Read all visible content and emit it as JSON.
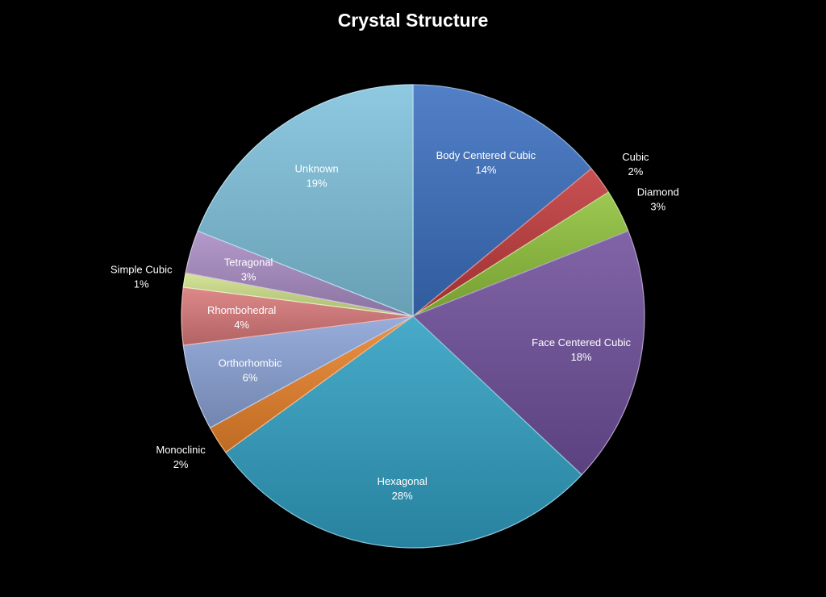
{
  "chart_data": {
    "type": "pie",
    "title": "Crystal Structure",
    "slices": [
      {
        "label": "Body Centered Cubic",
        "value": 14,
        "pct_label": "14%",
        "color": "#3a6fbf",
        "label_color": "#ffffff",
        "label_pos": "inside"
      },
      {
        "label": "Cubic",
        "value": 2,
        "pct_label": "2%",
        "color": "#c0393a",
        "label_color": "#ffffff",
        "label_pos": "outside"
      },
      {
        "label": "Diamond",
        "value": 3,
        "pct_label": "3%",
        "color": "#8fc13a",
        "label_color": "#ffffff",
        "label_pos": "outside"
      },
      {
        "label": "Face Centered Cubic",
        "value": 18,
        "pct_label": "18%",
        "color": "#6f4f9b",
        "label_color": "#ffffff",
        "label_pos": "inside"
      },
      {
        "label": "Hexagonal",
        "value": 28,
        "pct_label": "28%",
        "color": "#2f9fc2",
        "label_color": "#ffffff",
        "label_pos": "inside"
      },
      {
        "label": "Monoclinic",
        "value": 2,
        "pct_label": "2%",
        "color": "#e9822b",
        "label_color": "#ffffff",
        "label_pos": "outside"
      },
      {
        "label": "Orthorhombic",
        "value": 6,
        "pct_label": "6%",
        "color": "#8aa2d6",
        "label_color": "#ffffff",
        "label_pos": "inside"
      },
      {
        "label": "Rhombohedral",
        "value": 4,
        "pct_label": "4%",
        "color": "#d9797a",
        "label_color": "#ffffff",
        "label_pos": "inside"
      },
      {
        "label": "Simple Cubic",
        "value": 1,
        "pct_label": "1%",
        "color": "#cfe08a",
        "label_color": "#ffffff",
        "label_pos": "outside"
      },
      {
        "label": "Tetragonal",
        "value": 3,
        "pct_label": "3%",
        "color": "#a98cc4",
        "label_color": "#ffffff",
        "label_pos": "inside"
      },
      {
        "label": "Unknown",
        "value": 19,
        "pct_label": "19%",
        "color": "#7fc2dd",
        "label_color": "#ffffff",
        "label_pos": "inside"
      }
    ],
    "start_angle": "12 o'clock",
    "direction": "clockwise",
    "legend": "none"
  }
}
